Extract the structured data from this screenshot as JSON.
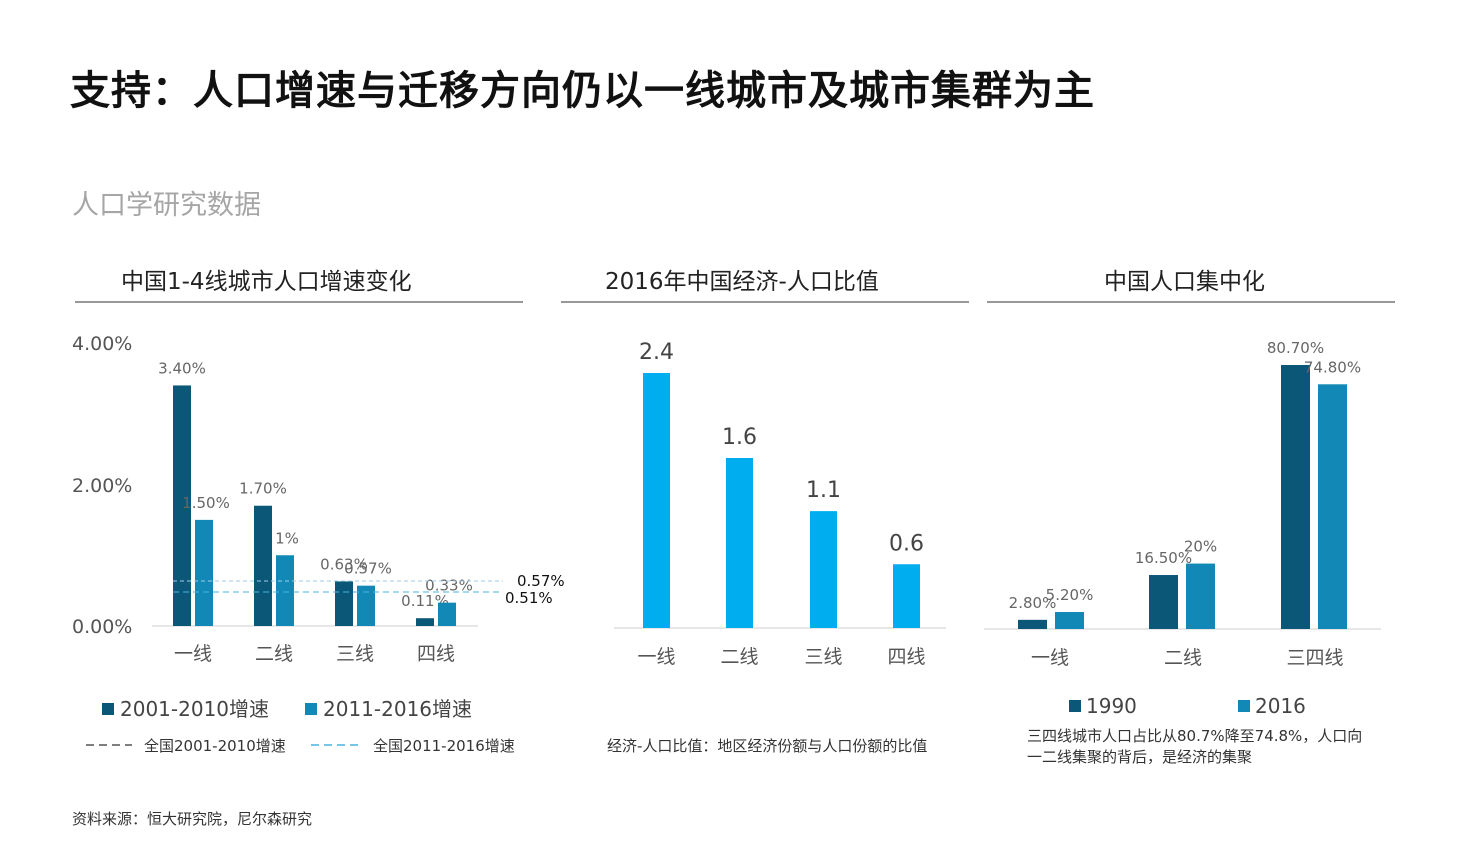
{
  "title": "支持：人口增速与迁移方向仍以一线城市及城市集群为主",
  "subtitle": "人口学研究数据",
  "source": "资料来源：恒大研究院，尼尔森研究",
  "colors": {
    "dark": "#0b5778",
    "mid": "#1188b5",
    "bright": "#00aeef"
  },
  "chart_data": [
    {
      "type": "bar",
      "title": "中国1-4线城市人口增速变化",
      "categories": [
        "一线",
        "二线",
        "三线",
        "四线"
      ],
      "series": [
        {
          "name": "2001-2010增速",
          "values": [
            3.4,
            1.7,
            0.63,
            0.11
          ],
          "labels": [
            "3.40%",
            "1.70%",
            "0.63%",
            "0.11%"
          ]
        },
        {
          "name": "2011-2016增速",
          "values": [
            1.5,
            1.0,
            0.57,
            0.33
          ],
          "labels": [
            "1.50%",
            "1%",
            "0.57%",
            "0.33%"
          ]
        }
      ],
      "reference_lines": [
        {
          "name": "全国2001-2010增速",
          "value": 0.57,
          "label": "0.57%"
        },
        {
          "name": "全国2011-2016增速",
          "value": 0.51,
          "label": "0.51%"
        }
      ],
      "yticks": [
        "4.00%",
        "2.00%",
        "0.00%"
      ],
      "ylim": [
        0,
        4
      ]
    },
    {
      "type": "bar",
      "title": "2016年中国经济-人口比值",
      "categories": [
        "一线",
        "二线",
        "三线",
        "四线"
      ],
      "values": [
        2.4,
        1.6,
        1.1,
        0.6
      ],
      "labels": [
        "2.4",
        "1.6",
        "1.1",
        "0.6"
      ],
      "note": "经济-人口比值：地区经济份额与人口份额的比值",
      "ylim": [
        0,
        2.4
      ]
    },
    {
      "type": "bar",
      "title": "中国人口集中化",
      "categories": [
        "一线",
        "二线",
        "三四线"
      ],
      "series": [
        {
          "name": "1990",
          "values": [
            2.8,
            16.5,
            80.7
          ],
          "labels": [
            "2.80%",
            "16.50%",
            "80.70%"
          ]
        },
        {
          "name": "2016",
          "values": [
            5.2,
            20,
            74.8
          ],
          "labels": [
            "5.20%",
            "20%",
            "74.80%"
          ]
        }
      ],
      "note_lines": [
        "三四线城市人口占比从80.7%降至74.8%，人口向",
        "一二线集聚的背后，是经济的集聚"
      ],
      "ylim": [
        0,
        80.7
      ]
    }
  ]
}
